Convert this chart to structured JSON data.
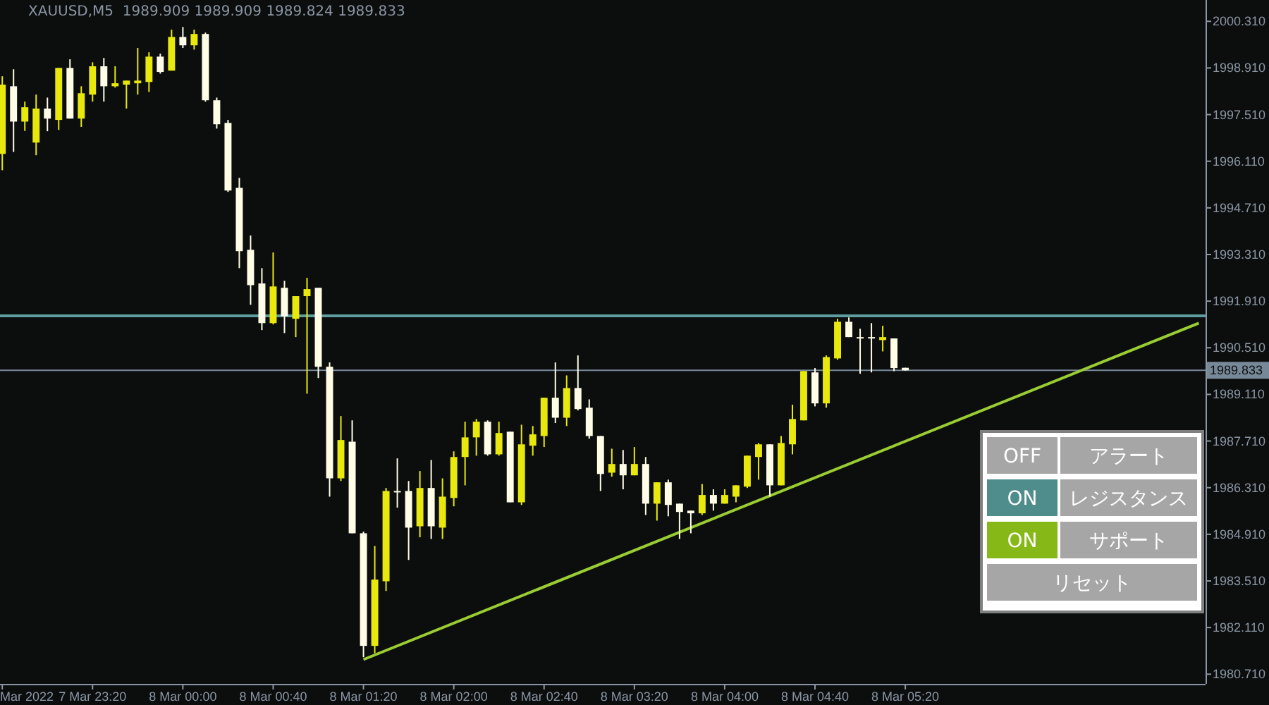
{
  "chart_data": {
    "type": "candlestick",
    "title": "XAUUSD,M5  1989.909 1989.909 1989.824 1989.833",
    "x": [
      "2022-03-07T22:40",
      "2022-03-07T22:45",
      "2022-03-07T22:50",
      "2022-03-07T22:55",
      "2022-03-07T23:00",
      "2022-03-07T23:05",
      "2022-03-07T23:10",
      "2022-03-07T23:15",
      "2022-03-07T23:20",
      "2022-03-07T23:25",
      "2022-03-07T23:30",
      "2022-03-07T23:35",
      "2022-03-07T23:40",
      "2022-03-07T23:45",
      "2022-03-07T23:50",
      "2022-03-07T23:55",
      "2022-03-08T00:00",
      "2022-03-08T00:05",
      "2022-03-08T00:10",
      "2022-03-08T00:15",
      "2022-03-08T00:20",
      "2022-03-08T00:25",
      "2022-03-08T00:30",
      "2022-03-08T00:35",
      "2022-03-08T00:40",
      "2022-03-08T00:45",
      "2022-03-08T00:50",
      "2022-03-08T00:55",
      "2022-03-08T01:00",
      "2022-03-08T01:05",
      "2022-03-08T01:10",
      "2022-03-08T01:15",
      "2022-03-08T01:20",
      "2022-03-08T01:25",
      "2022-03-08T01:30",
      "2022-03-08T01:35",
      "2022-03-08T01:40",
      "2022-03-08T01:45",
      "2022-03-08T01:50",
      "2022-03-08T01:55",
      "2022-03-08T02:00",
      "2022-03-08T02:05",
      "2022-03-08T02:10",
      "2022-03-08T02:15",
      "2022-03-08T02:20",
      "2022-03-08T02:25",
      "2022-03-08T02:30",
      "2022-03-08T02:35",
      "2022-03-08T02:40",
      "2022-03-08T02:45",
      "2022-03-08T02:50",
      "2022-03-08T02:55",
      "2022-03-08T03:00",
      "2022-03-08T03:05",
      "2022-03-08T03:10",
      "2022-03-08T03:15",
      "2022-03-08T03:20",
      "2022-03-08T03:25",
      "2022-03-08T03:30",
      "2022-03-08T03:35",
      "2022-03-08T03:40",
      "2022-03-08T03:45",
      "2022-03-08T03:50",
      "2022-03-08T03:55",
      "2022-03-08T04:00",
      "2022-03-08T04:05",
      "2022-03-08T04:10",
      "2022-03-08T04:15",
      "2022-03-08T04:20",
      "2022-03-08T04:25",
      "2022-03-08T04:30",
      "2022-03-08T04:35",
      "2022-03-08T04:40",
      "2022-03-08T04:45",
      "2022-03-08T04:50",
      "2022-03-08T04:55",
      "2022-03-08T05:00",
      "2022-03-08T05:05",
      "2022-03-08T05:10",
      "2022-03-08T05:15",
      "2022-03-08T05:20"
    ],
    "ohlc": [
      [
        1996.33,
        1998.66,
        1995.84,
        1998.41
      ],
      [
        1998.36,
        1998.87,
        1996.39,
        1997.3
      ],
      [
        1997.3,
        1997.9,
        1997.02,
        1997.73
      ],
      [
        1996.67,
        1998.11,
        1996.29,
        1997.69
      ],
      [
        1997.69,
        1998.02,
        1997.01,
        1997.39
      ],
      [
        1997.35,
        1998.91,
        1997.05,
        1998.91
      ],
      [
        1998.91,
        1999.17,
        1997.39,
        1997.39
      ],
      [
        1997.39,
        1998.36,
        1997.14,
        1998.15
      ],
      [
        1998.11,
        1999.08,
        1997.9,
        1998.96
      ],
      [
        1998.96,
        1999.21,
        1997.9,
        1998.36
      ],
      [
        1998.36,
        1998.96,
        1998.32,
        1998.45
      ],
      [
        1998.41,
        1998.53,
        1997.69,
        1998.53
      ],
      [
        1998.45,
        1999.51,
        1998.11,
        1998.53
      ],
      [
        1998.49,
        1999.38,
        1998.19,
        1999.25
      ],
      [
        1999.25,
        1999.34,
        1998.74,
        1998.79
      ],
      [
        1998.83,
        2000.06,
        1998.83,
        1999.84
      ],
      [
        1999.84,
        2000.14,
        1999.51,
        1999.59
      ],
      [
        1999.59,
        2000.06,
        1999.46,
        1999.93
      ],
      [
        1999.93,
        1999.97,
        1997.9,
        1997.94
      ],
      [
        1997.94,
        1998.02,
        1997.09,
        1997.22
      ],
      [
        1997.26,
        1997.35,
        1995.19,
        1995.23
      ],
      [
        1995.31,
        1995.61,
        1992.9,
        1993.41
      ],
      [
        1993.45,
        1993.88,
        1991.8,
        1992.39
      ],
      [
        1992.44,
        1992.9,
        1991.04,
        1991.25
      ],
      [
        1991.25,
        1993.37,
        1991.21,
        1992.35
      ],
      [
        1992.31,
        1992.52,
        1990.95,
        1991.46
      ],
      [
        1991.38,
        1992.06,
        1990.83,
        1992.06
      ],
      [
        1992.06,
        1992.61,
        1989.13,
        1992.27
      ],
      [
        1992.31,
        1992.31,
        1989.6,
        1989.94
      ],
      [
        1989.94,
        1990.07,
        1986.04,
        1986.59
      ],
      [
        1986.59,
        1988.46,
        1986.51,
        1987.74
      ],
      [
        1987.69,
        1988.33,
        1984.94,
        1984.94
      ],
      [
        1984.94,
        1984.99,
        1981.22,
        1981.56
      ],
      [
        1981.56,
        1984.56,
        1981.34,
        1983.55
      ],
      [
        1983.5,
        1986.3,
        1983.21,
        1986.21
      ],
      [
        1986.21,
        1987.19,
        1985.71,
        1986.17
      ],
      [
        1986.21,
        1986.51,
        1984.14,
        1985.11
      ],
      [
        1985.15,
        1986.81,
        1984.82,
        1986.3
      ],
      [
        1986.3,
        1987.14,
        1984.77,
        1985.15
      ],
      [
        1985.11,
        1986.59,
        1984.77,
        1986.04
      ],
      [
        1986.0,
        1987.4,
        1985.75,
        1987.23
      ],
      [
        1987.23,
        1988.29,
        1986.38,
        1987.82
      ],
      [
        1987.82,
        1988.37,
        1987.27,
        1988.29
      ],
      [
        1988.29,
        1988.33,
        1987.27,
        1987.31
      ],
      [
        1987.31,
        1988.29,
        1987.27,
        1987.95
      ],
      [
        1987.99,
        1987.99,
        1985.87,
        1985.87
      ],
      [
        1985.87,
        1988.2,
        1985.79,
        1987.61
      ],
      [
        1987.57,
        1988.16,
        1987.27,
        1987.91
      ],
      [
        1987.86,
        1989.01,
        1987.53,
        1989.01
      ],
      [
        1989.01,
        1990.07,
        1988.25,
        1988.41
      ],
      [
        1988.41,
        1989.68,
        1988.16,
        1989.3
      ],
      [
        1989.3,
        1990.28,
        1988.63,
        1988.67
      ],
      [
        1988.71,
        1988.96,
        1987.78,
        1987.86
      ],
      [
        1987.86,
        1987.86,
        1986.21,
        1986.72
      ],
      [
        1986.76,
        1987.48,
        1986.64,
        1987.02
      ],
      [
        1987.02,
        1987.44,
        1986.26,
        1986.68
      ],
      [
        1986.68,
        1987.53,
        1986.68,
        1987.02
      ],
      [
        1987.02,
        1987.23,
        1985.49,
        1985.83
      ],
      [
        1985.83,
        1986.47,
        1985.32,
        1986.47
      ],
      [
        1986.47,
        1986.55,
        1985.45,
        1985.79
      ],
      [
        1985.83,
        1985.83,
        1984.77,
        1985.58
      ],
      [
        1985.62,
        1985.62,
        1984.94,
        1985.54
      ],
      [
        1985.54,
        1986.42,
        1985.49,
        1986.09
      ],
      [
        1986.09,
        1986.26,
        1985.62,
        1985.83
      ],
      [
        1985.83,
        1986.26,
        1985.83,
        1986.09
      ],
      [
        1986.04,
        1986.38,
        1985.87,
        1986.38
      ],
      [
        1986.34,
        1987.27,
        1986.3,
        1987.27
      ],
      [
        1987.23,
        1987.65,
        1986.55,
        1987.61
      ],
      [
        1987.61,
        1987.61,
        1986.04,
        1986.38
      ],
      [
        1986.38,
        1987.86,
        1986.38,
        1987.65
      ],
      [
        1987.61,
        1988.8,
        1987.31,
        1988.37
      ],
      [
        1988.33,
        1989.81,
        1988.33,
        1989.81
      ],
      [
        1989.77,
        1989.9,
        1988.75,
        1988.84
      ],
      [
        1988.84,
        1990.28,
        1988.71,
        1990.23
      ],
      [
        1990.19,
        1991.38,
        1990.15,
        1991.29
      ],
      [
        1991.29,
        1991.42,
        1990.83,
        1990.83
      ],
      [
        1990.83,
        1991.08,
        1989.73,
        1990.79
      ],
      [
        1990.83,
        1991.25,
        1989.77,
        1990.79
      ],
      [
        1990.74,
        1991.17,
        1990.4,
        1990.83
      ],
      [
        1990.79,
        1990.79,
        1989.81,
        1989.9
      ],
      [
        1989.909,
        1989.909,
        1989.824,
        1989.833
      ]
    ],
    "series": [
      {
        "type": "line",
        "color": "#9acd32",
        "x": [
          "2022-03-08T01:20",
          "2022-03-08T07:30"
        ],
        "values": [
          1981.15,
          1991.25
        ]
      }
    ],
    "ref_lines": [
      {
        "axis": "y",
        "value": 1991.47,
        "color": "#5f9ea0"
      },
      {
        "axis": "y",
        "value": 1989.833,
        "label": "1989.833",
        "color": "#778899"
      }
    ],
    "xlim": [
      "2022-03-07T22:39",
      "2022-03-08T07:33"
    ],
    "xticks": [
      {
        "value": "2022-03-07T22:40",
        "label": "Mar 2022"
      },
      {
        "value": "2022-03-07T23:20",
        "label": "7 Mar 23:20"
      },
      {
        "value": "2022-03-08T00:00",
        "label": "8 Mar 00:00"
      },
      {
        "value": "2022-03-08T00:40",
        "label": "8 Mar 00:40"
      },
      {
        "value": "2022-03-08T01:20",
        "label": "8 Mar 01:20"
      },
      {
        "value": "2022-03-08T02:00",
        "label": "8 Mar 02:00"
      },
      {
        "value": "2022-03-08T02:40",
        "label": "8 Mar 02:40"
      },
      {
        "value": "2022-03-08T03:20",
        "label": "8 Mar 03:20"
      },
      {
        "value": "2022-03-08T04:00",
        "label": "8 Mar 04:00"
      },
      {
        "value": "2022-03-08T04:40",
        "label": "8 Mar 04:40"
      },
      {
        "value": "2022-03-08T05:20",
        "label": "8 Mar 05:20"
      }
    ],
    "ylim": [
      1980.42,
      2000.95
    ],
    "yticks": [
      {
        "value": 2000.31,
        "label": "2000.310"
      },
      {
        "value": 1998.91,
        "label": "1998.910"
      },
      {
        "value": 1997.51,
        "label": "1997.510"
      },
      {
        "value": 1996.11,
        "label": "1996.110"
      },
      {
        "value": 1994.71,
        "label": "1994.710"
      },
      {
        "value": 1993.31,
        "label": "1993.310"
      },
      {
        "value": 1991.91,
        "label": "1991.910"
      },
      {
        "value": 1990.51,
        "label": "1990.510"
      },
      {
        "value": 1989.11,
        "label": "1989.110"
      },
      {
        "value": 1987.71,
        "label": "1987.710"
      },
      {
        "value": 1986.31,
        "label": "1986.310"
      },
      {
        "value": 1984.91,
        "label": "1984.910"
      },
      {
        "value": 1983.51,
        "label": "1983.510"
      },
      {
        "value": 1982.11,
        "label": "1982.110"
      },
      {
        "value": 1980.71,
        "label": "1980.710"
      }
    ],
    "grid": false,
    "annotations": [
      "OFF",
      "アラート",
      "ON",
      "レジスタンス",
      "ON",
      "サポート",
      "リセット"
    ]
  }
}
